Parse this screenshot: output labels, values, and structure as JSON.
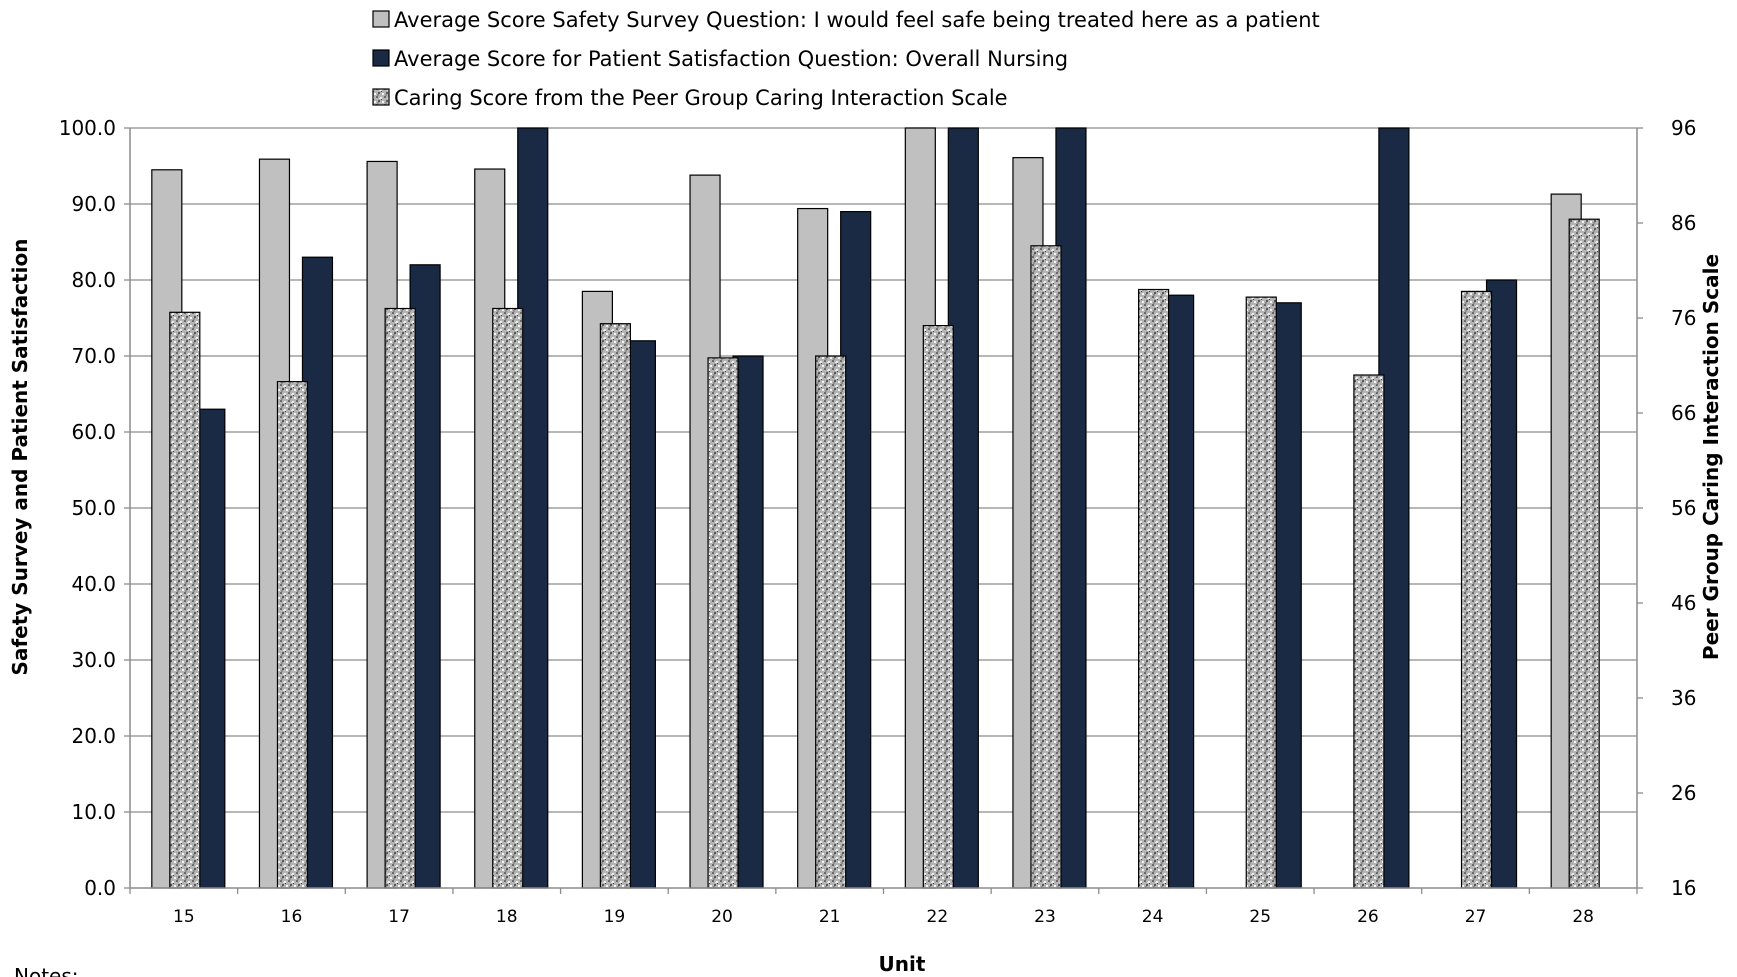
{
  "chart_data": {
    "type": "bar",
    "xlabel": "Unit",
    "ylabel_left": "Safety Survey and Patient Satisfaction",
    "ylabel_right": "Peer Group Caring Interaction Scale",
    "categories": [
      "15",
      "16",
      "17",
      "18",
      "19",
      "20",
      "21",
      "22",
      "23",
      "24",
      "25",
      "26",
      "27",
      "28"
    ],
    "ylim_left": [
      0,
      100
    ],
    "yticks_left": [
      "0.0",
      "10.0",
      "20.0",
      "30.0",
      "40.0",
      "50.0",
      "60.0",
      "70.0",
      "80.0",
      "90.0",
      "100.0"
    ],
    "ylim_right": [
      16,
      96
    ],
    "yticks_right": [
      "16",
      "26",
      "36",
      "46",
      "56",
      "66",
      "76",
      "86",
      "96"
    ],
    "grid": true,
    "legend_position": "top",
    "series": [
      {
        "name": "Average Score Safety Survey Question: I would feel safe being treated here as a patient",
        "axis": "left",
        "color": "#c0c0c0",
        "values": [
          94.5,
          95.9,
          95.6,
          94.6,
          78.5,
          93.8,
          89.4,
          100,
          96.1,
          null,
          null,
          null,
          null,
          91.3
        ]
      },
      {
        "name": "Average Score for Patient Satisfaction Question: Overall Nursing",
        "axis": "left",
        "color": "#1a2a44",
        "values": [
          63,
          83,
          82,
          100,
          72,
          70,
          89,
          100,
          100,
          78,
          77,
          100,
          80,
          null
        ]
      },
      {
        "name": "Caring Score from the Peer Group Caring Interaction Scale",
        "axis": "right",
        "color": "#a8a8a8",
        "values": [
          76.6,
          69.3,
          77.0,
          77.0,
          75.4,
          71.8,
          72.0,
          75.2,
          83.6,
          79.0,
          78.2,
          70.0,
          78.8,
          86.4
        ]
      }
    ],
    "notes_label": "Notes:"
  }
}
